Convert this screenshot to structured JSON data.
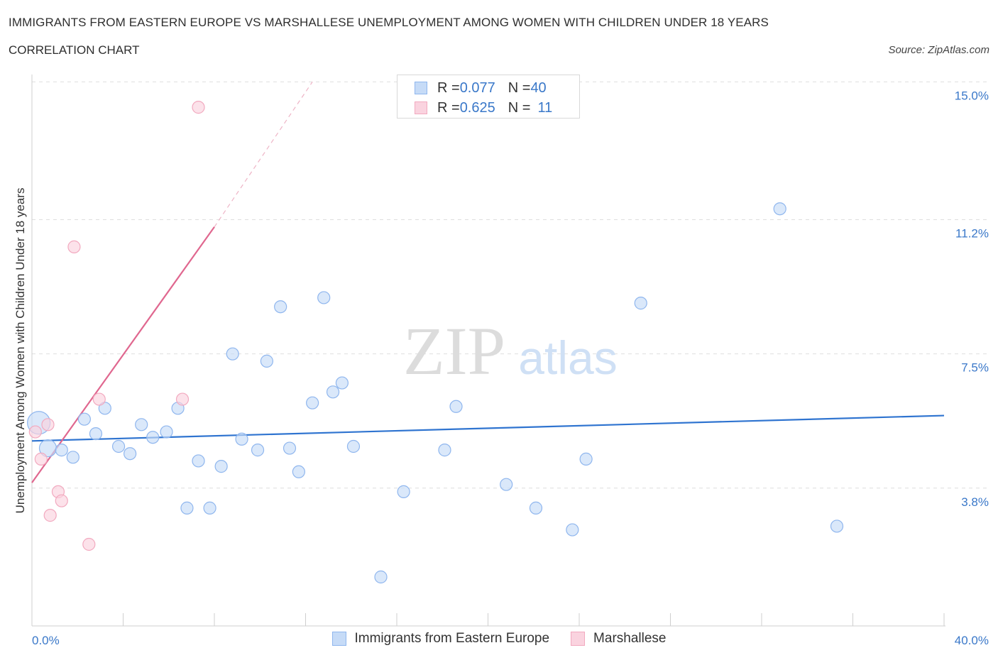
{
  "header": {
    "title": "IMMIGRANTS FROM EASTERN EUROPE VS MARSHALLESE UNEMPLOYMENT AMONG WOMEN WITH CHILDREN UNDER 18 YEARS",
    "subtitle": "CORRELATION CHART",
    "source": "Source: ZipAtlas.com"
  },
  "watermark": {
    "zip": "ZIP",
    "atlas": "atlas"
  },
  "legend": {
    "series1": {
      "r_label": "R = ",
      "r_value": "0.077",
      "n_label": "N = ",
      "n_value": "40"
    },
    "series2": {
      "r_label": "R = ",
      "r_value": "0.625",
      "n_label": "N = ",
      "n_value": "11"
    }
  },
  "chart_data": {
    "type": "scatter",
    "ylabel": "Unemployment Among Women with Children Under 18 years",
    "xlim": [
      0,
      40
    ],
    "ylim": [
      0,
      15.3
    ],
    "x_tick_labels": [
      {
        "value": 0,
        "label": "0.0%"
      },
      {
        "value": 40,
        "label": "40.0%"
      }
    ],
    "y_tick_labels": [
      {
        "value": 3.8,
        "label": "3.8%"
      },
      {
        "value": 7.5,
        "label": "7.5%"
      },
      {
        "value": 11.2,
        "label": "11.2%"
      },
      {
        "value": 15.0,
        "label": "15.0%"
      }
    ],
    "y_gridlines": [
      3.8,
      7.5,
      11.2,
      15.0
    ],
    "grid": true,
    "legend_placement": "top-center",
    "series": [
      {
        "name": "Immigrants from Eastern Europe",
        "color": "#8fb6ee",
        "fill": "#c6dbf7",
        "trend": {
          "x": [
            0,
            40
          ],
          "y": [
            5.1,
            5.8
          ]
        },
        "points": [
          {
            "x": 0.3,
            "y": 5.6,
            "size": "large"
          },
          {
            "x": 0.7,
            "y": 4.9,
            "size": "medium"
          },
          {
            "x": 1.3,
            "y": 4.85
          },
          {
            "x": 1.8,
            "y": 4.65
          },
          {
            "x": 2.3,
            "y": 5.7
          },
          {
            "x": 2.8,
            "y": 5.3
          },
          {
            "x": 3.2,
            "y": 6.0
          },
          {
            "x": 3.8,
            "y": 4.95
          },
          {
            "x": 4.3,
            "y": 4.75
          },
          {
            "x": 4.8,
            "y": 5.55
          },
          {
            "x": 5.3,
            "y": 5.2
          },
          {
            "x": 5.9,
            "y": 5.35
          },
          {
            "x": 6.4,
            "y": 6.0
          },
          {
            "x": 6.8,
            "y": 3.25
          },
          {
            "x": 7.3,
            "y": 4.55
          },
          {
            "x": 7.8,
            "y": 3.25
          },
          {
            "x": 8.3,
            "y": 4.4
          },
          {
            "x": 8.8,
            "y": 7.5
          },
          {
            "x": 9.2,
            "y": 5.15
          },
          {
            "x": 9.9,
            "y": 4.85
          },
          {
            "x": 10.3,
            "y": 7.3
          },
          {
            "x": 10.9,
            "y": 8.8
          },
          {
            "x": 11.3,
            "y": 4.9
          },
          {
            "x": 11.7,
            "y": 4.25
          },
          {
            "x": 12.3,
            "y": 6.15
          },
          {
            "x": 12.8,
            "y": 9.05
          },
          {
            "x": 13.2,
            "y": 6.45
          },
          {
            "x": 13.6,
            "y": 6.7
          },
          {
            "x": 14.1,
            "y": 4.95
          },
          {
            "x": 15.3,
            "y": 1.35
          },
          {
            "x": 16.3,
            "y": 3.7
          },
          {
            "x": 18.1,
            "y": 4.85
          },
          {
            "x": 18.6,
            "y": 6.05
          },
          {
            "x": 20.8,
            "y": 3.9
          },
          {
            "x": 22.1,
            "y": 3.25
          },
          {
            "x": 23.7,
            "y": 2.65
          },
          {
            "x": 24.3,
            "y": 4.6
          },
          {
            "x": 26.7,
            "y": 8.9
          },
          {
            "x": 32.8,
            "y": 11.5
          },
          {
            "x": 35.3,
            "y": 2.75
          }
        ]
      },
      {
        "name": "Marshallese",
        "color": "#f2a9bf",
        "fill": "#fad3df",
        "trend": {
          "x": [
            0,
            8.0
          ],
          "y": [
            3.95,
            11.0
          ],
          "dashed_to": {
            "x": 12.3,
            "y": 15.0
          }
        },
        "points": [
          {
            "x": 0.15,
            "y": 5.35
          },
          {
            "x": 0.4,
            "y": 4.6
          },
          {
            "x": 0.7,
            "y": 5.55
          },
          {
            "x": 0.8,
            "y": 3.05
          },
          {
            "x": 1.15,
            "y": 3.7
          },
          {
            "x": 1.3,
            "y": 3.45
          },
          {
            "x": 1.85,
            "y": 10.45
          },
          {
            "x": 2.5,
            "y": 2.25
          },
          {
            "x": 2.95,
            "y": 6.25
          },
          {
            "x": 6.6,
            "y": 6.25
          },
          {
            "x": 7.3,
            "y": 14.3
          }
        ]
      }
    ]
  }
}
